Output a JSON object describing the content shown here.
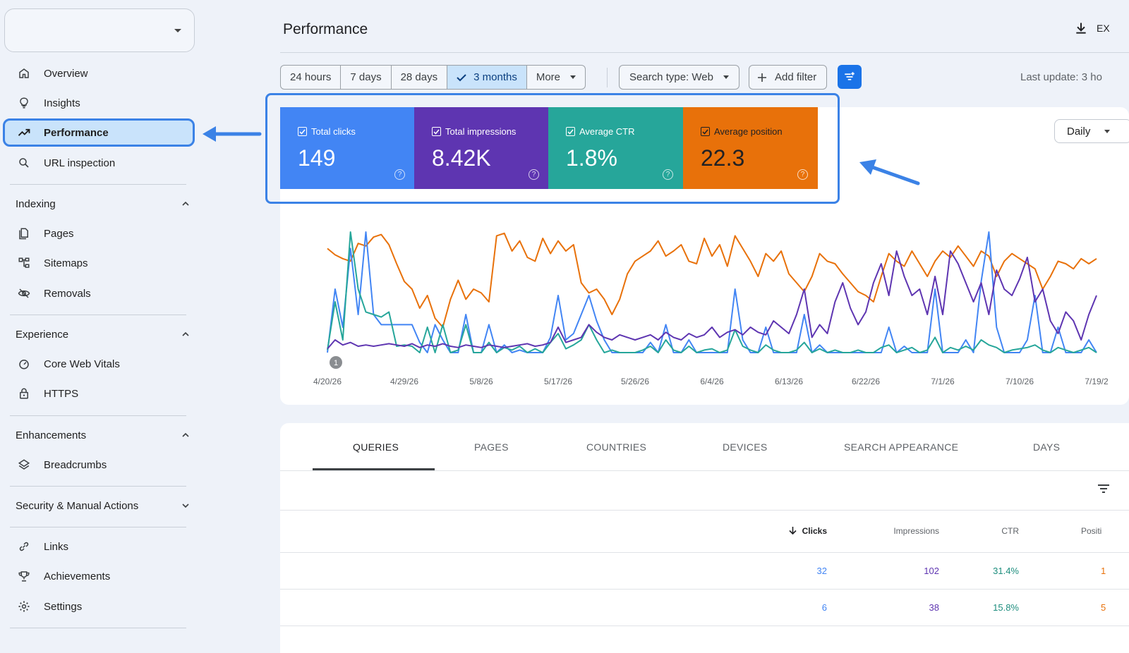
{
  "sidebar": {
    "property_value": "",
    "items_top": [
      {
        "label": "Overview",
        "icon": "home-icon"
      },
      {
        "label": "Insights",
        "icon": "lightbulb-icon"
      },
      {
        "label": "Performance",
        "icon": "trending-up-icon",
        "active": true
      },
      {
        "label": "URL inspection",
        "icon": "search-icon"
      }
    ],
    "sections": [
      {
        "title": "Indexing",
        "items": [
          "Pages",
          "Sitemaps",
          "Removals"
        ]
      },
      {
        "title": "Experience",
        "items": [
          "Core Web Vitals",
          "HTTPS"
        ]
      },
      {
        "title": "Enhancements",
        "items": [
          "Breadcrumbs"
        ]
      },
      {
        "title": "Security & Manual Actions",
        "items": []
      }
    ],
    "items_bottom": [
      "Links",
      "Achievements",
      "Settings"
    ]
  },
  "header": {
    "title": "Performance",
    "export_label": "EX"
  },
  "filters": {
    "ranges": [
      "24 hours",
      "7 days",
      "28 days",
      "3 months"
    ],
    "selected_range": "3 months",
    "more_label": "More",
    "search_type": "Search type: Web",
    "add_filter": "Add filter",
    "last_update": "Last update: 3 ho"
  },
  "granularity": "Daily",
  "metrics": [
    {
      "label": "Total clicks",
      "value": "149",
      "color": "#4285f4"
    },
    {
      "label": "Total impressions",
      "value": "8.42K",
      "color": "#5e35b1"
    },
    {
      "label": "Average CTR",
      "value": "1.8%",
      "color": "#26a69a"
    },
    {
      "label": "Average position",
      "value": "22.3",
      "color": "#e8710a"
    }
  ],
  "chart_data": {
    "type": "line",
    "x_ticks": [
      "4/20/26",
      "4/29/26",
      "5/8/26",
      "5/17/26",
      "5/26/26",
      "6/4/26",
      "6/13/26",
      "6/22/26",
      "7/1/26",
      "7/10/26",
      "7/19/2"
    ],
    "annotation_marker": "1",
    "series": [
      {
        "color": "#e8710a",
        "values": [
          0.82,
          0.77,
          0.74,
          0.72,
          0.86,
          0.84,
          0.91,
          0.93,
          0.85,
          0.7,
          0.56,
          0.5,
          0.35,
          0.45,
          0.27,
          0.2,
          0.42,
          0.57,
          0.42,
          0.5,
          0.47,
          0.4,
          0.92,
          0.94,
          0.8,
          0.88,
          0.75,
          0.72,
          0.9,
          0.78,
          0.88,
          0.8,
          0.85,
          0.55,
          0.47,
          0.5,
          0.42,
          0.3,
          0.42,
          0.62,
          0.72,
          0.76,
          0.8,
          0.88,
          0.76,
          0.8,
          0.85,
          0.72,
          0.7,
          0.9,
          0.76,
          0.85,
          0.68,
          0.92,
          0.82,
          0.72,
          0.6,
          0.78,
          0.72,
          0.8,
          0.62,
          0.55,
          0.48,
          0.6,
          0.78,
          0.72,
          0.7,
          0.62,
          0.55,
          0.48,
          0.45,
          0.4,
          0.6,
          0.78,
          0.72,
          0.68,
          0.8,
          0.7,
          0.6,
          0.72,
          0.8,
          0.75,
          0.84,
          0.76,
          0.68,
          0.8,
          0.76,
          0.6,
          0.72,
          0.78,
          0.74,
          0.7,
          0.66,
          0.5,
          0.6,
          0.72,
          0.7,
          0.66,
          0.74,
          0.7,
          0.74
        ]
      },
      {
        "color": "#4285f4",
        "values": [
          0.0,
          0.5,
          0.2,
          0.82,
          0.3,
          0.95,
          0.3,
          0.22,
          0.22,
          0.22,
          0.22,
          0.22,
          0.08,
          0.0,
          0.22,
          0.1,
          0.0,
          0.0,
          0.3,
          0.0,
          0.0,
          0.22,
          0.0,
          0.06,
          0.0,
          0.02,
          0.0,
          0.0,
          0.0,
          0.12,
          0.45,
          0.1,
          0.15,
          0.3,
          0.45,
          0.25,
          0.1,
          0.0,
          0.0,
          0.0,
          0.0,
          0.0,
          0.08,
          0.0,
          0.22,
          0.0,
          0.0,
          0.1,
          0.0,
          0.0,
          0.0,
          0.0,
          0.0,
          0.5,
          0.1,
          0.0,
          0.0,
          0.2,
          0.0,
          0.0,
          0.0,
          0.0,
          0.3,
          0.0,
          0.06,
          0.0,
          0.0,
          0.0,
          0.0,
          0.0,
          0.0,
          0.0,
          0.0,
          0.2,
          0.0,
          0.05,
          0.0,
          0.0,
          0.0,
          0.5,
          0.0,
          0.0,
          0.0,
          0.1,
          0.0,
          0.56,
          0.95,
          0.2,
          0.0,
          0.0,
          0.0,
          0.1,
          0.45,
          0.0,
          0.0,
          0.2,
          0.0,
          0.0,
          0.0,
          0.1,
          0.0
        ]
      },
      {
        "color": "#26a69a",
        "values": [
          0.02,
          0.4,
          0.1,
          0.95,
          0.5,
          0.32,
          0.3,
          0.28,
          0.32,
          0.05,
          0.06,
          0.05,
          0.0,
          0.2,
          0.0,
          0.22,
          0.0,
          0.02,
          0.22,
          0.0,
          0.0,
          0.08,
          0.0,
          0.04,
          0.02,
          0.05,
          0.0,
          0.03,
          0.0,
          0.08,
          0.15,
          0.03,
          0.06,
          0.1,
          0.22,
          0.1,
          0.0,
          0.02,
          0.0,
          0.0,
          0.0,
          0.02,
          0.05,
          0.0,
          0.1,
          0.02,
          0.0,
          0.05,
          0.0,
          0.02,
          0.03,
          0.0,
          0.02,
          0.18,
          0.05,
          0.02,
          0.0,
          0.06,
          0.02,
          0.0,
          0.0,
          0.02,
          0.08,
          0.0,
          0.03,
          0.0,
          0.02,
          0.0,
          0.0,
          0.02,
          0.0,
          0.0,
          0.04,
          0.06,
          0.0,
          0.02,
          0.04,
          0.0,
          0.02,
          0.12,
          0.0,
          0.04,
          0.02,
          0.05,
          0.02,
          0.1,
          0.06,
          0.04,
          0.0,
          0.02,
          0.03,
          0.04,
          0.06,
          0.02,
          0.0,
          0.04,
          0.02,
          0.0,
          0.02,
          0.04,
          0.0
        ]
      },
      {
        "color": "#5e35b1",
        "values": [
          0.03,
          0.1,
          0.06,
          0.08,
          0.05,
          0.06,
          0.05,
          0.06,
          0.07,
          0.06,
          0.05,
          0.07,
          0.04,
          0.06,
          0.05,
          0.07,
          0.05,
          0.04,
          0.06,
          0.05,
          0.04,
          0.06,
          0.05,
          0.04,
          0.05,
          0.06,
          0.07,
          0.05,
          0.06,
          0.08,
          0.2,
          0.08,
          0.1,
          0.12,
          0.22,
          0.16,
          0.12,
          0.1,
          0.14,
          0.12,
          0.1,
          0.12,
          0.14,
          0.1,
          0.16,
          0.12,
          0.1,
          0.15,
          0.12,
          0.14,
          0.2,
          0.12,
          0.16,
          0.18,
          0.14,
          0.2,
          0.16,
          0.14,
          0.25,
          0.2,
          0.15,
          0.3,
          0.5,
          0.12,
          0.22,
          0.15,
          0.4,
          0.55,
          0.35,
          0.22,
          0.32,
          0.55,
          0.7,
          0.45,
          0.8,
          0.6,
          0.45,
          0.5,
          0.3,
          0.6,
          0.3,
          0.8,
          0.7,
          0.55,
          0.4,
          0.55,
          0.3,
          0.65,
          0.5,
          0.45,
          0.58,
          0.75,
          0.4,
          0.5,
          0.25,
          0.15,
          0.32,
          0.25,
          0.1,
          0.3,
          0.45
        ]
      }
    ]
  },
  "table": {
    "tabs": [
      "QUERIES",
      "PAGES",
      "COUNTRIES",
      "DEVICES",
      "SEARCH APPEARANCE",
      "DAYS"
    ],
    "active_tab": "QUERIES",
    "headers": [
      "Clicks",
      "Impressions",
      "CTR",
      "Positi"
    ],
    "rows": [
      {
        "clicks": "32",
        "impressions": "102",
        "ctr": "31.4%",
        "position": "1"
      },
      {
        "clicks": "6",
        "impressions": "38",
        "ctr": "15.8%",
        "position": "5"
      }
    ]
  },
  "colors": {
    "accent": "#1a73e8",
    "annotation": "#3b82e6"
  }
}
